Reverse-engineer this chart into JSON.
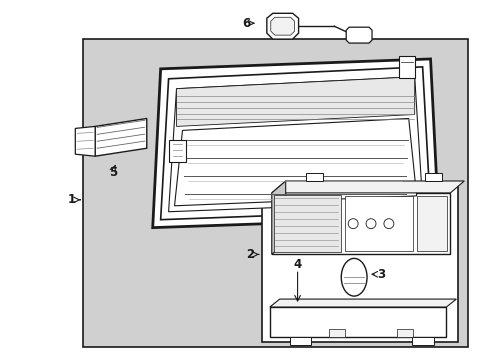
{
  "bg_color": "#ffffff",
  "fig_bg_color": "#ffffff",
  "line_color": "#1a1a1a",
  "label_color": "#1a1a1a",
  "gray_fill": "#e8e8e8",
  "light_gray": "#f2f2f2",
  "mid_gray": "#c8c8c8",
  "dot_fill": "#d0d0d0"
}
